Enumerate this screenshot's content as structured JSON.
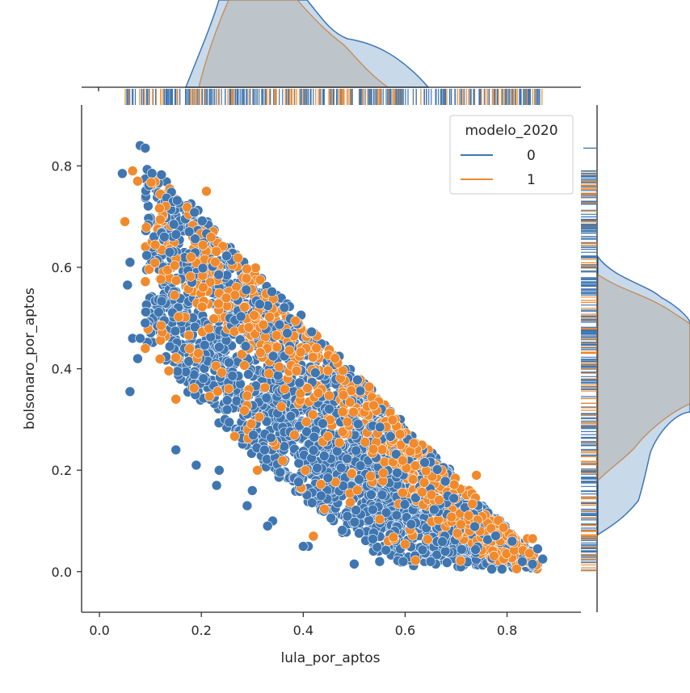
{
  "chart_data": {
    "type": "scatter",
    "title": "",
    "xlabel": "lula_por_aptos",
    "ylabel": "bolsonaro_por_aptos",
    "xlim": [
      -0.035,
      0.945
    ],
    "ylim": [
      -0.08,
      0.92
    ],
    "xticks": [
      "0.0",
      "0.2",
      "0.4",
      "0.6",
      "0.8"
    ],
    "xtick_values": [
      0.0,
      0.2,
      0.4,
      0.6,
      0.8
    ],
    "yticks": [
      "0.0",
      "0.2",
      "0.4",
      "0.6",
      "0.8"
    ],
    "ytick_values": [
      0.0,
      0.2,
      0.4,
      0.6,
      0.8
    ],
    "grid": false,
    "legend": {
      "title": "modelo_2020",
      "placement": "top-right",
      "entries": [
        "0",
        "1"
      ]
    },
    "marginals": [
      "kde",
      "rug"
    ],
    "series": [
      {
        "name": "0",
        "color": "#3f76b0",
        "x": [
          0.08,
          0.09,
          0.045,
          0.06,
          0.055,
          0.065,
          0.06,
          0.075,
          0.08,
          0.09,
          0.15,
          0.19,
          0.235,
          0.23,
          0.3,
          0.29,
          0.34,
          0.33,
          0.41,
          0.4,
          0.5,
          0.55,
          0.66,
          0.65,
          0.77,
          0.79,
          0.83,
          0.85,
          0.87,
          0.86,
          0.81
        ],
        "y": [
          0.84,
          0.835,
          0.785,
          0.61,
          0.565,
          0.46,
          0.355,
          0.42,
          0.46,
          0.49,
          0.24,
          0.21,
          0.2,
          0.17,
          0.16,
          0.13,
          0.1,
          0.09,
          0.05,
          0.05,
          0.015,
          0.02,
          0.015,
          0.02,
          0.005,
          0.005,
          0.02,
          0.015,
          0.025,
          0.045,
          0.06
        ]
      },
      {
        "name": "1",
        "color": "#f08a2c",
        "x": [
          0.05,
          0.065,
          0.075,
          0.09,
          0.15,
          0.21,
          0.31,
          0.42,
          0.74,
          0.84,
          0.85
        ],
        "y": [
          0.69,
          0.79,
          0.77,
          0.44,
          0.34,
          0.75,
          0.2,
          0.07,
          0.19,
          0.065,
          0.065
        ]
      }
    ]
  }
}
